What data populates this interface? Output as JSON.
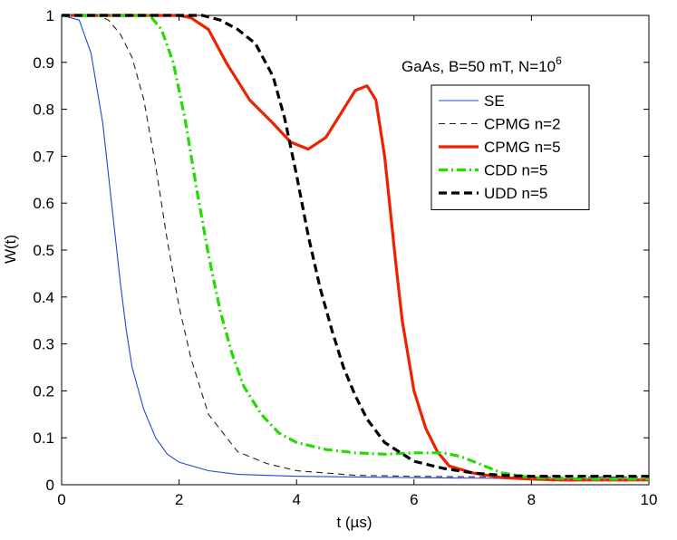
{
  "chart_data": {
    "type": "line",
    "title": "",
    "xlabel": "t (µs)",
    "ylabel": "W(t)",
    "xlim": [
      0,
      10
    ],
    "ylim": [
      0,
      1
    ],
    "xticks": [
      0,
      2,
      4,
      6,
      8,
      10
    ],
    "yticks": [
      0,
      0.1,
      0.2,
      0.3,
      0.4,
      0.5,
      0.6,
      0.7,
      0.8,
      0.9,
      1
    ],
    "ytick_labels": [
      "0",
      "0.1",
      "0.2",
      "0.3",
      "0.4",
      "0.5",
      "0.6",
      "0.7",
      "0.8",
      "0.9",
      "1"
    ],
    "grid": false,
    "legend_position": "upper-right",
    "annotation": {
      "text": "GaAs, B=50 mT, N=10",
      "superscript": "6"
    },
    "series": [
      {
        "name": "SE",
        "color": "#2244dd",
        "style": "solid",
        "width": "thin",
        "x": [
          0,
          0.3,
          0.5,
          0.7,
          0.85,
          1.0,
          1.1,
          1.2,
          1.4,
          1.6,
          1.8,
          2.0,
          2.5,
          3.0,
          4.0,
          6.0,
          8.0,
          10.0
        ],
        "y": [
          1.0,
          0.99,
          0.92,
          0.77,
          0.6,
          0.43,
          0.33,
          0.25,
          0.16,
          0.1,
          0.065,
          0.048,
          0.03,
          0.022,
          0.018,
          0.015,
          0.013,
          0.012
        ]
      },
      {
        "name": "CPMG n=2",
        "color": "#222222",
        "style": "dash",
        "width": "thin",
        "x": [
          0,
          0.6,
          0.8,
          1.0,
          1.2,
          1.4,
          1.6,
          1.8,
          2.0,
          2.2,
          2.5,
          3.0,
          3.5,
          4.0,
          5.0,
          6.0,
          7.0,
          8.0,
          9.0,
          10.0
        ],
        "y": [
          1.0,
          1.0,
          0.99,
          0.96,
          0.91,
          0.82,
          0.68,
          0.52,
          0.38,
          0.27,
          0.15,
          0.07,
          0.045,
          0.03,
          0.02,
          0.018,
          0.017,
          0.016,
          0.016,
          0.016
        ]
      },
      {
        "name": "CPMG n=5",
        "color": "#ee2200",
        "style": "solid",
        "width": "thick",
        "x": [
          0,
          2.0,
          2.2,
          2.5,
          2.8,
          3.2,
          3.6,
          3.9,
          4.2,
          4.5,
          4.8,
          5.0,
          5.2,
          5.35,
          5.5,
          5.6,
          5.7,
          5.8,
          6.0,
          6.2,
          6.4,
          6.6,
          7.0,
          7.5,
          8.0,
          8.5,
          9.0,
          10.0
        ],
        "y": [
          1.0,
          1.0,
          0.995,
          0.97,
          0.9,
          0.82,
          0.77,
          0.73,
          0.715,
          0.74,
          0.8,
          0.84,
          0.85,
          0.82,
          0.7,
          0.58,
          0.46,
          0.35,
          0.2,
          0.12,
          0.07,
          0.04,
          0.025,
          0.015,
          0.012,
          0.01,
          0.01,
          0.01
        ]
      },
      {
        "name": "CDD n=5",
        "color": "#22dd00",
        "style": "dashdot",
        "width": "thick",
        "x": [
          0,
          1.5,
          1.7,
          1.9,
          2.1,
          2.3,
          2.5,
          2.7,
          2.9,
          3.1,
          3.4,
          3.7,
          4.0,
          4.5,
          5.0,
          5.5,
          6.0,
          6.5,
          6.8,
          7.2,
          7.5,
          8.0,
          9.0,
          10.0
        ],
        "y": [
          1.0,
          1.0,
          0.97,
          0.9,
          0.78,
          0.63,
          0.49,
          0.37,
          0.28,
          0.21,
          0.15,
          0.11,
          0.09,
          0.075,
          0.068,
          0.065,
          0.068,
          0.068,
          0.06,
          0.04,
          0.025,
          0.015,
          0.012,
          0.012
        ]
      },
      {
        "name": "UDD n=5",
        "color": "#000000",
        "style": "dash",
        "width": "thick",
        "x": [
          0,
          2.4,
          2.7,
          3.0,
          3.3,
          3.6,
          3.8,
          4.0,
          4.2,
          4.4,
          4.6,
          4.8,
          5.0,
          5.2,
          5.5,
          6.0,
          6.5,
          7.0,
          7.5,
          8.0,
          9.0,
          10.0
        ],
        "y": [
          1.0,
          1.0,
          0.99,
          0.97,
          0.94,
          0.87,
          0.78,
          0.66,
          0.53,
          0.42,
          0.33,
          0.25,
          0.19,
          0.14,
          0.09,
          0.05,
          0.035,
          0.025,
          0.02,
          0.018,
          0.018,
          0.018
        ]
      }
    ]
  }
}
